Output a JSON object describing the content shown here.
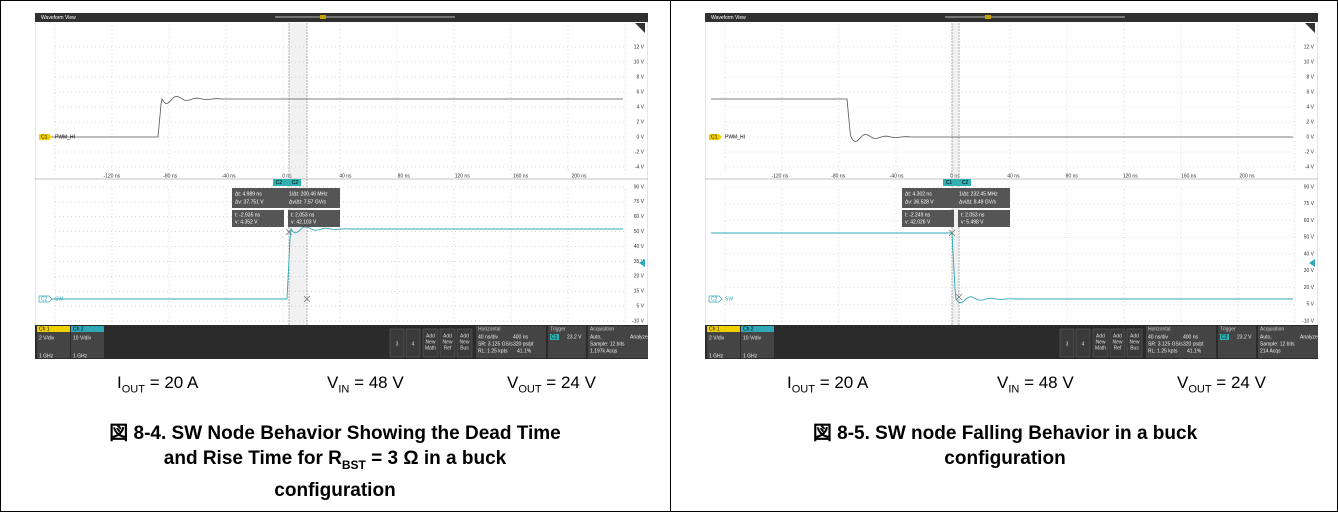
{
  "panels": [
    {
      "scope": {
        "title": "Waveform View",
        "ch1_label": "C1",
        "ch1_name": "PWM_HI",
        "ch2_label": "C2",
        "ch2_name": "SW",
        "xticks": [
          "-120 ns",
          "-80 ns",
          "-40 ns",
          "0 ns",
          "40 ns",
          "80 ns",
          "120 ns",
          "160 ns",
          "200 ns"
        ],
        "top_yticks": [
          "12 V",
          "10 V",
          "8 V",
          "6 V",
          "4 V",
          "2 V",
          "0 V",
          "-2 V",
          "-4 V"
        ],
        "bottom_yticks": [
          "90 V",
          "75 V",
          "60 V",
          "50 V",
          "40 V",
          "35 V",
          "20 V",
          "15 V",
          "5 V",
          "-10 V"
        ],
        "cursor_labels": [
          "C2",
          "C2"
        ],
        "measure": [
          "Δt: 4.989 ns",
          "1/Δt: 200.46 MHz",
          "Δv: 37.751 V",
          "Δv/Δt: 7.57 GV/s"
        ],
        "cursor_a": [
          "t: -2.935 ns",
          "v: 4.352 V"
        ],
        "cursor_b": [
          "t: 2.053 ns",
          "v: 42.103 V"
        ],
        "status": {
          "ch1": [
            "Ch 1",
            "2 V/div",
            "1 GHz"
          ],
          "ch2": [
            "Ch 2",
            "10 V/div",
            "1 GHz"
          ],
          "buttons": [
            "3",
            "4"
          ],
          "add": [
            [
              "Add",
              "New",
              "Math"
            ],
            [
              "Add",
              "New",
              "Ref"
            ],
            [
              "Add",
              "New",
              "Bus"
            ]
          ],
          "horizontal": [
            "Horizontal",
            "40 ns/div",
            "400 ns",
            "SR: 3.125 GS/s",
            "320 ps/pt",
            "RL: 1.25 kpts",
            "41.1%"
          ],
          "trigger": [
            "Trigger",
            "C1",
            "23.2 V"
          ],
          "acquisition": [
            "Acquisition",
            "Auto,",
            "Analyze",
            "Sample: 12 bits",
            "1.197k Acqs"
          ]
        }
      },
      "conditions": [
        {
          "main": "I",
          "sub": "OUT",
          "rest": " = 20 A"
        },
        {
          "main": "V",
          "sub": "IN",
          "rest": " = 48 V"
        },
        {
          "main": "V",
          "sub": "OUT",
          "rest": " = 24 V"
        }
      ],
      "caption": [
        [
          {
            "text": "図 8-4. SW Node Behavior Showing the Dead Time"
          }
        ],
        [
          {
            "text": "and Rise Time for R"
          },
          {
            "sub": "BST"
          },
          {
            "text": " = 3 Ω in a buck"
          }
        ],
        [
          {
            "text": "configuration"
          }
        ]
      ]
    },
    {
      "scope": {
        "title": "Waveform View",
        "ch1_label": "C1",
        "ch1_name": "PWM_HI",
        "ch2_label": "C2",
        "ch2_name": "SW",
        "xticks": [
          "-120 ns",
          "-80 ns",
          "-40 ns",
          "0 ns",
          "40 ns",
          "80 ns",
          "120 ns",
          "160 ns",
          "200 ns"
        ],
        "top_yticks": [
          "12 V",
          "10 V",
          "8 V",
          "6 V",
          "4 V",
          "2 V",
          "0 V",
          "-2 V",
          "-4 V"
        ],
        "bottom_yticks": [
          "90 V",
          "75 V",
          "60 V",
          "50 V",
          "40 V",
          "30 V",
          "20 V",
          "5 V",
          "-10 V"
        ],
        "cursor_labels": [
          "C1",
          "C2"
        ],
        "measure": [
          "Δt: 4.302 ns",
          "1/Δt: 232.45 MHz",
          "Δv: 36.528 V",
          "Δv/Δt: 8.49 GV/s"
        ],
        "cursor_a": [
          "t: -2.249 ns",
          "v: 42.026 V"
        ],
        "cursor_b": [
          "t: 2.053 ns",
          "v: 5.498 V"
        ],
        "status": {
          "ch1": [
            "Ch 1",
            "2 V/div",
            "1 GHz"
          ],
          "ch2": [
            "Ch 2",
            "10 V/div",
            "1 GHz"
          ],
          "buttons": [
            "3",
            "4"
          ],
          "add": [
            [
              "Add",
              "New",
              "Math"
            ],
            [
              "Add",
              "New",
              "Ref"
            ],
            [
              "Add",
              "New",
              "Bus"
            ]
          ],
          "horizontal": [
            "Horizontal",
            "40 ns/div",
            "400 ns",
            "SR: 3.125 GS/s",
            "320 ps/pt",
            "RL: 1.25 kpts",
            "41.1%"
          ],
          "trigger": [
            "Trigger",
            "C2",
            "23.2 V"
          ],
          "acquisition": [
            "Acquisition",
            "Auto,",
            "Analyze",
            "Sample: 12 bits",
            "214 Acqs"
          ]
        }
      },
      "conditions": [
        {
          "main": "I",
          "sub": "OUT",
          "rest": " = 20 A"
        },
        {
          "main": "V",
          "sub": "IN",
          "rest": " = 48 V"
        },
        {
          "main": "V",
          "sub": "OUT",
          "rest": " = 24 V"
        }
      ],
      "caption": [
        [
          {
            "text": "図 8-5. SW node Falling Behavior in a buck"
          }
        ],
        [
          {
            "text": "configuration"
          }
        ]
      ]
    }
  ]
}
